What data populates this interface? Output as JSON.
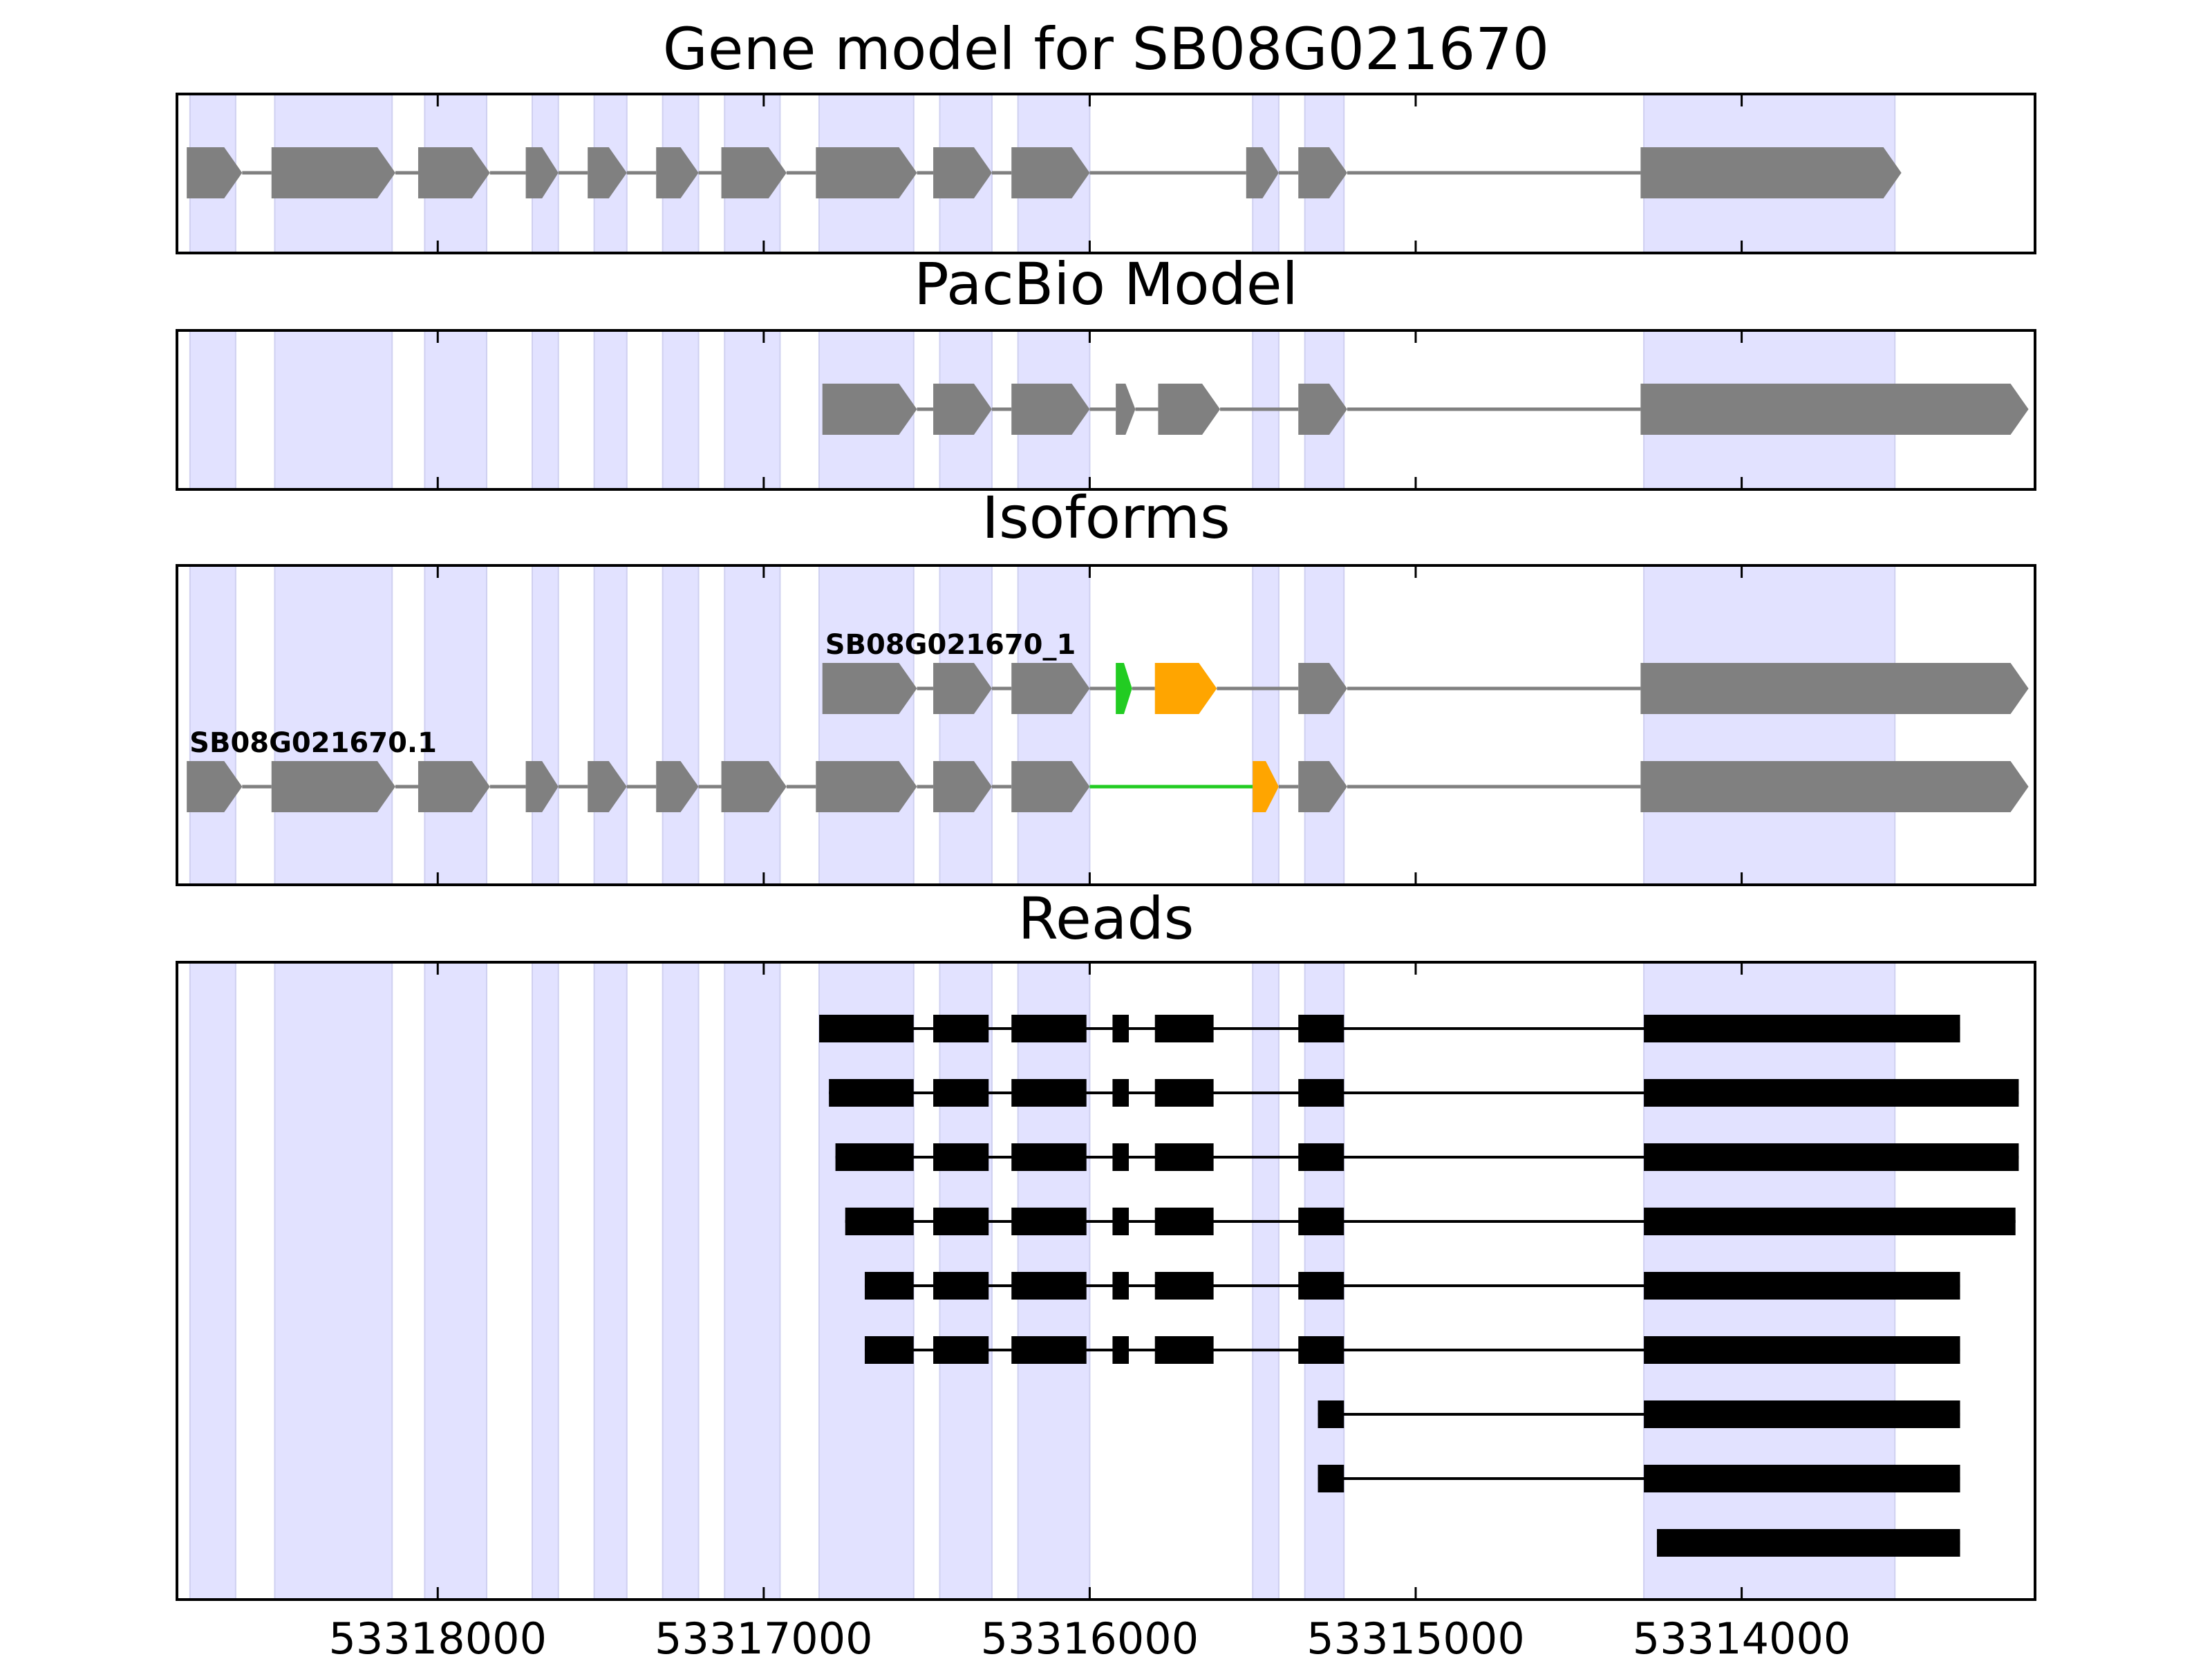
{
  "colors": {
    "exon": "#808080",
    "intron": "#808080",
    "read": "#000000",
    "shade": "#e2e2ff",
    "highlight_green": "#22cc22",
    "highlight_orange": "#ffa500",
    "frame": "#000000"
  },
  "chart_data": {
    "type": "gene-track",
    "orientation": "reverse-strand coordinates (axis decreases left to right)",
    "xlim": [
      53318800,
      53313100
    ],
    "xticks": [
      53318000,
      53317000,
      53316000,
      53315000,
      53314000
    ],
    "xtick_labels": [
      "53318000",
      "53317000",
      "53316000",
      "53315000",
      "53314000"
    ],
    "shaded_exon_regions": [
      [
        53318760,
        53318620
      ],
      [
        53318500,
        53318140
      ],
      [
        53318040,
        53317850
      ],
      [
        53317710,
        53317630
      ],
      [
        53317520,
        53317420
      ],
      [
        53317310,
        53317200
      ],
      [
        53317120,
        53316950
      ],
      [
        53316830,
        53316540
      ],
      [
        53316460,
        53316300
      ],
      [
        53316220,
        53316000
      ],
      [
        53315500,
        53315420
      ],
      [
        53315340,
        53315220
      ],
      [
        53314300,
        53313530
      ]
    ],
    "panels": [
      {
        "key": "gene_model",
        "title": "Gene model for SB08G021670",
        "tracks": [
          {
            "label": "",
            "exons": [
              {
                "start": 53318770,
                "end": 53318600,
                "color": "gray"
              },
              {
                "start": 53318510,
                "end": 53318130,
                "color": "gray"
              },
              {
                "start": 53318060,
                "end": 53317840,
                "color": "gray"
              },
              {
                "start": 53317730,
                "end": 53317630,
                "color": "gray"
              },
              {
                "start": 53317540,
                "end": 53317420,
                "color": "gray"
              },
              {
                "start": 53317330,
                "end": 53317200,
                "color": "gray"
              },
              {
                "start": 53317130,
                "end": 53316930,
                "color": "gray"
              },
              {
                "start": 53316840,
                "end": 53316530,
                "color": "gray"
              },
              {
                "start": 53316480,
                "end": 53316300,
                "color": "gray"
              },
              {
                "start": 53316240,
                "end": 53316000,
                "color": "gray"
              },
              {
                "start": 53315520,
                "end": 53315420,
                "color": "gray"
              },
              {
                "start": 53315360,
                "end": 53315210,
                "color": "gray"
              },
              {
                "start": 53314310,
                "end": 53313510,
                "color": "gray"
              }
            ],
            "introns": [
              {
                "start": 53318600,
                "end": 53318510,
                "color": "gray"
              },
              {
                "start": 53318130,
                "end": 53318060,
                "color": "gray"
              },
              {
                "start": 53317840,
                "end": 53317730,
                "color": "gray"
              },
              {
                "start": 53317630,
                "end": 53317540,
                "color": "gray"
              },
              {
                "start": 53317420,
                "end": 53317330,
                "color": "gray"
              },
              {
                "start": 53317200,
                "end": 53317130,
                "color": "gray"
              },
              {
                "start": 53316930,
                "end": 53316840,
                "color": "gray"
              },
              {
                "start": 53316530,
                "end": 53316480,
                "color": "gray"
              },
              {
                "start": 53316300,
                "end": 53316240,
                "color": "gray"
              },
              {
                "start": 53316000,
                "end": 53315520,
                "color": "gray"
              },
              {
                "start": 53315420,
                "end": 53315360,
                "color": "gray"
              },
              {
                "start": 53315210,
                "end": 53314310,
                "color": "gray"
              }
            ]
          }
        ]
      },
      {
        "key": "pacbio",
        "title": "PacBio Model",
        "tracks": [
          {
            "label": "",
            "exons": [
              {
                "start": 53316820,
                "end": 53316530,
                "color": "gray"
              },
              {
                "start": 53316480,
                "end": 53316300,
                "color": "gray"
              },
              {
                "start": 53316240,
                "end": 53316000,
                "color": "gray"
              },
              {
                "start": 53315920,
                "end": 53315860,
                "color": "gray"
              },
              {
                "start": 53315790,
                "end": 53315600,
                "color": "gray"
              },
              {
                "start": 53315360,
                "end": 53315210,
                "color": "gray"
              },
              {
                "start": 53314310,
                "end": 53313120,
                "color": "gray"
              }
            ],
            "introns": [
              {
                "start": 53316530,
                "end": 53316480,
                "color": "gray"
              },
              {
                "start": 53316300,
                "end": 53316240,
                "color": "gray"
              },
              {
                "start": 53316000,
                "end": 53315920,
                "color": "gray"
              },
              {
                "start": 53315860,
                "end": 53315790,
                "color": "gray"
              },
              {
                "start": 53315600,
                "end": 53315360,
                "color": "gray"
              },
              {
                "start": 53315210,
                "end": 53314310,
                "color": "gray"
              }
            ]
          }
        ]
      },
      {
        "key": "isoforms",
        "title": "Isoforms",
        "tracks": [
          {
            "label": "SB08G021670_1",
            "exons": [
              {
                "start": 53316820,
                "end": 53316530,
                "color": "gray"
              },
              {
                "start": 53316480,
                "end": 53316300,
                "color": "gray"
              },
              {
                "start": 53316240,
                "end": 53316000,
                "color": "gray"
              },
              {
                "start": 53315920,
                "end": 53315870,
                "color": "green"
              },
              {
                "start": 53315800,
                "end": 53315610,
                "color": "orange"
              },
              {
                "start": 53315360,
                "end": 53315210,
                "color": "gray"
              },
              {
                "start": 53314310,
                "end": 53313120,
                "color": "gray"
              }
            ],
            "introns": [
              {
                "start": 53316530,
                "end": 53316480,
                "color": "gray"
              },
              {
                "start": 53316300,
                "end": 53316240,
                "color": "gray"
              },
              {
                "start": 53316000,
                "end": 53315920,
                "color": "gray"
              },
              {
                "start": 53315870,
                "end": 53315800,
                "color": "gray"
              },
              {
                "start": 53315610,
                "end": 53315360,
                "color": "gray"
              },
              {
                "start": 53315210,
                "end": 53314310,
                "color": "gray"
              }
            ]
          },
          {
            "label": "SB08G021670.1",
            "exons": [
              {
                "start": 53318770,
                "end": 53318600,
                "color": "gray"
              },
              {
                "start": 53318510,
                "end": 53318130,
                "color": "gray"
              },
              {
                "start": 53318060,
                "end": 53317840,
                "color": "gray"
              },
              {
                "start": 53317730,
                "end": 53317630,
                "color": "gray"
              },
              {
                "start": 53317540,
                "end": 53317420,
                "color": "gray"
              },
              {
                "start": 53317330,
                "end": 53317200,
                "color": "gray"
              },
              {
                "start": 53317130,
                "end": 53316930,
                "color": "gray"
              },
              {
                "start": 53316840,
                "end": 53316530,
                "color": "gray"
              },
              {
                "start": 53316480,
                "end": 53316300,
                "color": "gray"
              },
              {
                "start": 53316240,
                "end": 53316000,
                "color": "gray"
              },
              {
                "start": 53315500,
                "end": 53315420,
                "color": "orange"
              },
              {
                "start": 53315360,
                "end": 53315210,
                "color": "gray"
              },
              {
                "start": 53314310,
                "end": 53313120,
                "color": "gray"
              }
            ],
            "introns": [
              {
                "start": 53318600,
                "end": 53318510,
                "color": "gray"
              },
              {
                "start": 53318130,
                "end": 53318060,
                "color": "gray"
              },
              {
                "start": 53317840,
                "end": 53317730,
                "color": "gray"
              },
              {
                "start": 53317630,
                "end": 53317540,
                "color": "gray"
              },
              {
                "start": 53317420,
                "end": 53317330,
                "color": "gray"
              },
              {
                "start": 53317200,
                "end": 53317130,
                "color": "gray"
              },
              {
                "start": 53316930,
                "end": 53316840,
                "color": "gray"
              },
              {
                "start": 53316530,
                "end": 53316480,
                "color": "gray"
              },
              {
                "start": 53316300,
                "end": 53316240,
                "color": "gray"
              },
              {
                "start": 53316000,
                "end": 53315500,
                "color": "green"
              },
              {
                "start": 53315420,
                "end": 53315360,
                "color": "gray"
              },
              {
                "start": 53315210,
                "end": 53314310,
                "color": "gray"
              }
            ]
          }
        ]
      },
      {
        "key": "reads",
        "title": "Reads",
        "reads": [
          {
            "blocks": [
              [
                53316830,
                53316540
              ],
              [
                53316480,
                53316310
              ],
              [
                53316240,
                53316010
              ],
              [
                53315930,
                53315880
              ],
              [
                53315800,
                53315620
              ],
              [
                53315360,
                53315220
              ],
              [
                53314300,
                53313330
              ]
            ]
          },
          {
            "blocks": [
              [
                53316800,
                53316540
              ],
              [
                53316480,
                53316310
              ],
              [
                53316240,
                53316010
              ],
              [
                53315930,
                53315880
              ],
              [
                53315800,
                53315620
              ],
              [
                53315360,
                53315220
              ],
              [
                53314300,
                53313150
              ]
            ]
          },
          {
            "blocks": [
              [
                53316780,
                53316540
              ],
              [
                53316480,
                53316310
              ],
              [
                53316240,
                53316010
              ],
              [
                53315930,
                53315880
              ],
              [
                53315800,
                53315620
              ],
              [
                53315360,
                53315220
              ],
              [
                53314300,
                53313150
              ]
            ]
          },
          {
            "blocks": [
              [
                53316750,
                53316540
              ],
              [
                53316480,
                53316310
              ],
              [
                53316240,
                53316010
              ],
              [
                53315930,
                53315880
              ],
              [
                53315800,
                53315620
              ],
              [
                53315360,
                53315220
              ],
              [
                53314300,
                53313160
              ]
            ]
          },
          {
            "blocks": [
              [
                53316690,
                53316540
              ],
              [
                53316480,
                53316310
              ],
              [
                53316240,
                53316010
              ],
              [
                53315930,
                53315880
              ],
              [
                53315800,
                53315620
              ],
              [
                53315360,
                53315220
              ],
              [
                53314300,
                53313330
              ]
            ]
          },
          {
            "blocks": [
              [
                53316690,
                53316540
              ],
              [
                53316480,
                53316310
              ],
              [
                53316240,
                53316010
              ],
              [
                53315930,
                53315880
              ],
              [
                53315800,
                53315620
              ],
              [
                53315360,
                53315220
              ],
              [
                53314300,
                53313330
              ]
            ]
          },
          {
            "blocks": [
              [
                53315300,
                53315220
              ],
              [
                53314300,
                53313330
              ]
            ]
          },
          {
            "blocks": [
              [
                53315300,
                53315220
              ],
              [
                53314300,
                53313330
              ]
            ]
          },
          {
            "blocks": [
              [
                53314260,
                53313330
              ]
            ]
          }
        ]
      }
    ]
  }
}
